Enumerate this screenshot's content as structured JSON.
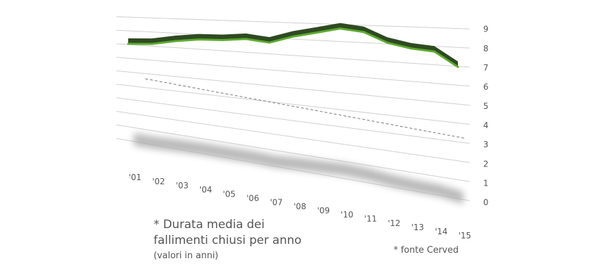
{
  "chart_data": {
    "type": "line",
    "title_lines": [
      "* Durata media dei",
      "fallimenti chiusi per anno"
    ],
    "subtitle": "(valori in anni)",
    "source": "* fonte Cerved",
    "x": [
      "'01",
      "'02",
      "'03",
      "'04",
      "'05",
      "'06",
      "'07",
      "'08",
      "'09",
      "'10",
      "'11",
      "'12",
      "'13",
      "'14",
      "'15"
    ],
    "y_ticks": [
      "0",
      "1",
      "2",
      "3",
      "4",
      "5",
      "6",
      "7",
      "8",
      "9"
    ],
    "ylim": [
      0,
      9.5
    ],
    "series": [
      {
        "values": [
          7.1,
          7.2,
          7.5,
          7.7,
          7.75,
          7.9,
          7.75,
          8.2,
          8.5,
          8.8,
          8.65,
          8.1,
          7.85,
          7.75,
          7.0
        ]
      }
    ],
    "colors": {
      "line": "#5cab2e",
      "ribbon": "#2f4a22",
      "shadow": "#a8a8a8",
      "grid": "#cfcfcf",
      "text": "#555555"
    },
    "grid": true,
    "style": "3d-ribbon-perspective"
  }
}
